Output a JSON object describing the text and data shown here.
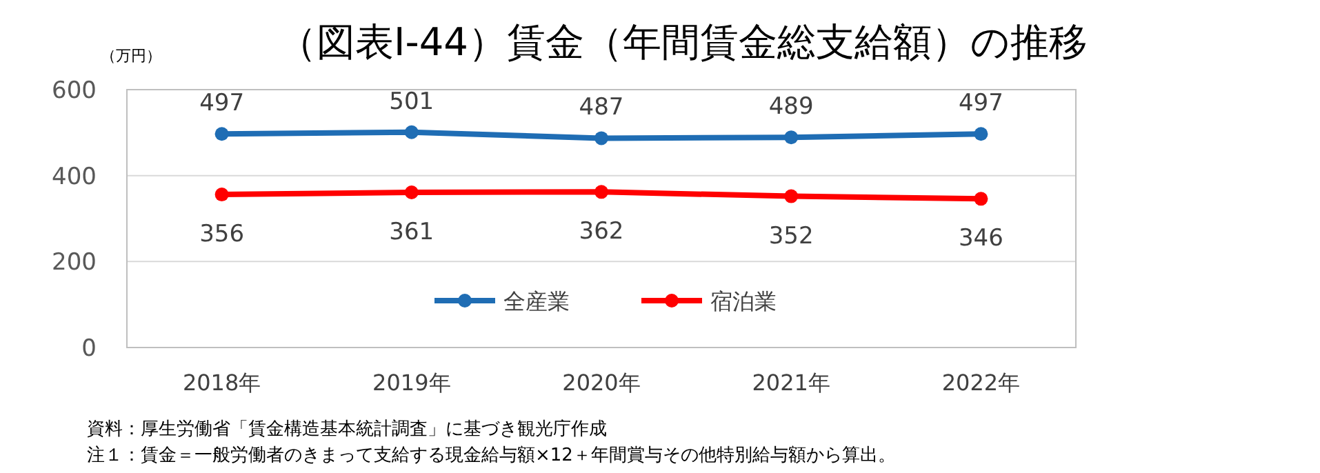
{
  "chart_data": {
    "type": "line",
    "title": "（図表Ⅰ-44）賃金（年間賃金総支給額）の推移",
    "ylabel": "（万円）",
    "categories": [
      "2018年",
      "2019年",
      "2020年",
      "2021年",
      "2022年"
    ],
    "series": [
      {
        "name": "全産業",
        "color": "#1f6db4",
        "values": [
          497,
          501,
          487,
          489,
          497
        ]
      },
      {
        "name": "宿泊業",
        "color": "#ff0000",
        "values": [
          356,
          361,
          362,
          352,
          346
        ]
      }
    ],
    "ylim": [
      0,
      600
    ],
    "yticks": [
      0,
      200,
      400,
      600
    ],
    "grid": "y",
    "legend": "bottom",
    "marker": "circle",
    "data_labels": true,
    "annotations": [
      "資料：厚生労働省「賃金構造基本統計調査」に基づき観光庁作成",
      "注１：賃金＝一般労働者のきまって支給する現金給与額×12＋年間賞与その他特別給与額から算出。"
    ]
  }
}
